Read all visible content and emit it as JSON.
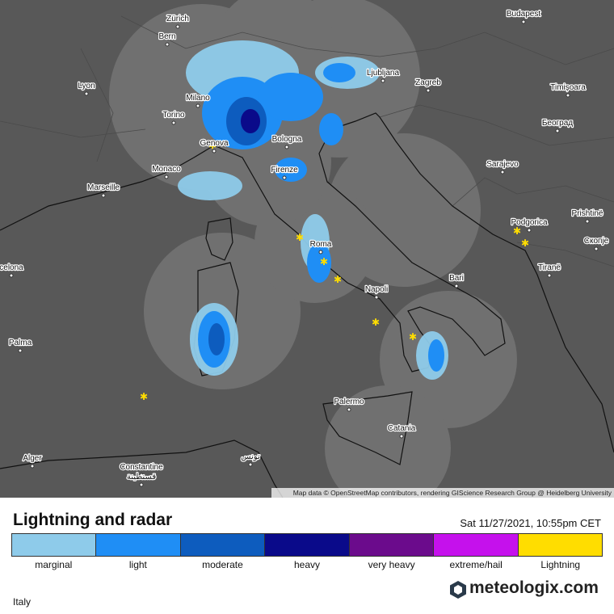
{
  "map": {
    "cities": [
      {
        "name": "Zürich"
      },
      {
        "name": "Budapest"
      },
      {
        "name": "Bern"
      },
      {
        "name": "Lyon"
      },
      {
        "name": "Milano"
      },
      {
        "name": "Ljubljana"
      },
      {
        "name": "Zagreb"
      },
      {
        "name": "Timișoara"
      },
      {
        "name": "Torino"
      },
      {
        "name": "Београд"
      },
      {
        "name": "Genova"
      },
      {
        "name": "Bologna"
      },
      {
        "name": "Monaco"
      },
      {
        "name": "Sarajevo"
      },
      {
        "name": "Marseille"
      },
      {
        "name": "Firenze"
      },
      {
        "name": "Podgorica"
      },
      {
        "name": "Prishtinë"
      },
      {
        "name": "Roma"
      },
      {
        "name": "Скопје"
      },
      {
        "name": "Tiranë"
      },
      {
        "name": "celona"
      },
      {
        "name": "Bari"
      },
      {
        "name": "Napoli"
      },
      {
        "name": "Palma"
      },
      {
        "name": "Palermo"
      },
      {
        "name": "Catania"
      },
      {
        "name": "Alger"
      },
      {
        "name": "Constantine"
      },
      {
        "name": "قسنطينة"
      },
      {
        "name": "تونس"
      }
    ],
    "attribution": "Map data © OpenStreetMap contributors, rendering GIScience Research Group @ Heidelberg University"
  },
  "legend": {
    "title": "Lightning and radar",
    "timestamp": "Sat 11/27/2021, 10:55pm CET",
    "items": [
      {
        "label": "marginal",
        "color": "#8ecbea"
      },
      {
        "label": "light",
        "color": "#1f8ef5"
      },
      {
        "label": "moderate",
        "color": "#0d5cbe"
      },
      {
        "label": "heavy",
        "color": "#0a0a8a"
      },
      {
        "label": "very heavy",
        "color": "#6b0b8c"
      },
      {
        "label": "extreme/hail",
        "color": "#c511ec"
      },
      {
        "label": "Lightning",
        "color": "#ffdd00"
      }
    ]
  },
  "footer": {
    "region": "Italy",
    "brand": "meteologix.com"
  }
}
